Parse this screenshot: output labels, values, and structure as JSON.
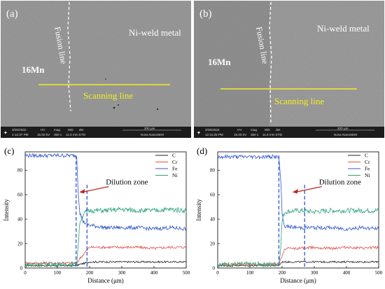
{
  "panels": [
    {
      "id": "a",
      "label": "(a)",
      "left_region": "16Mn",
      "right_region": "Ni-weld metal",
      "fusion_label": "Fusion line",
      "scan_label": "Scanning line",
      "infobar": {
        "date": "3/25/2022",
        "time": "1:12:37 PM",
        "hv_label": "HV",
        "hv": "15.00 kV",
        "mag_label": "mag",
        "mag": "350 x",
        "wd_label": "WD",
        "wd": "11.0 mm",
        "det_label": "det",
        "det": "ETD",
        "scale": "200 μm",
        "instrument": "Nova NanoSEM"
      }
    },
    {
      "id": "b",
      "label": "(b)",
      "left_region": "16Mn",
      "right_region": "Ni-weld metal",
      "fusion_label": "Fusion line",
      "scan_label": "Scanning line",
      "infobar": {
        "date": "3/25/2022",
        "time": "12:11:25 PM",
        "hv_label": "HV",
        "hv": "15.00 kV",
        "mag_label": "mag",
        "mag": "350 x",
        "wd_label": "WD",
        "wd": "11.6 mm",
        "det_label": "det",
        "det": "ETD",
        "scale": "200 μm",
        "instrument": "Nova NanoSEM"
      }
    }
  ],
  "chart_data": [
    {
      "type": "line",
      "panel_label": "(c)",
      "xlabel": "Distance (μm)",
      "ylabel": "Intensity",
      "xlim": [
        0,
        500
      ],
      "ylim": [
        0,
        95
      ],
      "xticks": [
        0,
        100,
        200,
        300,
        400,
        500
      ],
      "yticks": [
        0,
        20,
        40,
        60,
        80
      ],
      "legend_position": "top-right",
      "annotation": "Dilution zone",
      "annotation_arrow_to": [
        168,
        62
      ],
      "dilution_zone": [
        158,
        192
      ],
      "series": [
        {
          "name": "C",
          "color": "#222222",
          "x": [
            0,
            160,
            170,
            200,
            250,
            300,
            350,
            400,
            450,
            500
          ],
          "values": [
            2,
            2,
            3,
            5,
            5,
            5,
            5,
            5,
            5,
            5
          ]
        },
        {
          "name": "Cr",
          "color": "#e0524a",
          "x": [
            0,
            160,
            170,
            190,
            200,
            250,
            300,
            350,
            400,
            450,
            500
          ],
          "values": [
            4,
            4,
            8,
            14,
            17,
            17,
            17,
            17,
            16,
            17,
            17
          ]
        },
        {
          "name": "Fe",
          "color": "#2f55d4",
          "x": [
            0,
            100,
            150,
            160,
            165,
            170,
            180,
            190,
            200,
            250,
            300,
            350,
            400,
            450,
            500
          ],
          "values": [
            92,
            92,
            92,
            92,
            60,
            45,
            38,
            36,
            35,
            33,
            33,
            33,
            32,
            33,
            32
          ]
        },
        {
          "name": "Ni",
          "color": "#2aa37a",
          "x": [
            0,
            160,
            165,
            170,
            180,
            190,
            200,
            250,
            300,
            350,
            400,
            450,
            500
          ],
          "values": [
            3,
            3,
            20,
            38,
            44,
            46,
            47,
            47,
            48,
            47,
            47,
            48,
            47
          ]
        }
      ]
    },
    {
      "type": "line",
      "panel_label": "(d)",
      "xlabel": "Distance (μm)",
      "ylabel": "Intensity",
      "xlim": [
        0,
        500
      ],
      "ylim": [
        0,
        95
      ],
      "xticks": [
        0,
        100,
        200,
        300,
        400,
        500
      ],
      "yticks": [
        0,
        20,
        40,
        60,
        80
      ],
      "legend_position": "top-right",
      "annotation": "Dilution zone",
      "annotation_arrow_to": [
        232,
        62
      ],
      "dilution_zone": [
        190,
        270
      ],
      "series": [
        {
          "name": "C",
          "color": "#222222",
          "x": [
            0,
            190,
            200,
            250,
            300,
            350,
            400,
            450,
            500
          ],
          "values": [
            2,
            2,
            5,
            5,
            5,
            5,
            5,
            5,
            5
          ]
        },
        {
          "name": "Cr",
          "color": "#e0524a",
          "x": [
            0,
            190,
            200,
            210,
            250,
            300,
            350,
            400,
            450,
            500
          ],
          "values": [
            3,
            3,
            10,
            16,
            16,
            17,
            16,
            17,
            16,
            17
          ]
        },
        {
          "name": "Fe",
          "color": "#2f55d4",
          "x": [
            0,
            100,
            180,
            190,
            195,
            200,
            205,
            210,
            250,
            300,
            350,
            400,
            450,
            500
          ],
          "values": [
            91,
            91,
            91,
            90,
            75,
            45,
            36,
            34,
            33,
            33,
            33,
            32,
            33,
            32
          ]
        },
        {
          "name": "Ni",
          "color": "#2aa37a",
          "x": [
            0,
            190,
            195,
            200,
            205,
            210,
            250,
            300,
            350,
            400,
            450,
            500
          ],
          "values": [
            3,
            3,
            15,
            38,
            44,
            46,
            47,
            46,
            47,
            47,
            47,
            47
          ]
        }
      ]
    }
  ]
}
